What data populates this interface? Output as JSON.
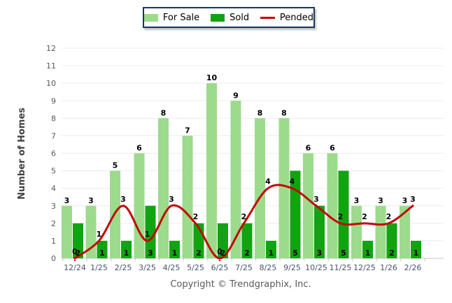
{
  "legend": {
    "for_sale_label": "For Sale",
    "sold_label": "Sold",
    "pended_label": "Pended"
  },
  "footer": "Copyright © Trendgraphix, Inc.",
  "chart_data": {
    "type": "bar",
    "subtype": "grouped-bars-with-line-overlay",
    "title": "",
    "xlabel": "",
    "ylabel": "Number of Homes",
    "ylim": [
      0,
      12
    ],
    "yticks": [
      0,
      1,
      2,
      3,
      4,
      5,
      6,
      7,
      8,
      9,
      10,
      11,
      12
    ],
    "grid": true,
    "legend_position": "top-center",
    "categories": [
      "12/24",
      "1/25",
      "2/25",
      "3/25",
      "4/25",
      "5/25",
      "6/25",
      "7/25",
      "8/25",
      "9/25",
      "10/25",
      "11/25",
      "12/25",
      "1/26",
      "2/26"
    ],
    "series": [
      {
        "name": "For Sale",
        "type": "bar",
        "color": "#9CDB8C",
        "values": [
          3,
          3,
          5,
          6,
          8,
          7,
          10,
          9,
          8,
          8,
          6,
          6,
          3,
          3,
          3
        ]
      },
      {
        "name": "Sold",
        "type": "bar",
        "color": "#11A411",
        "values": [
          2,
          1,
          1,
          3,
          1,
          2,
          2,
          2,
          1,
          5,
          3,
          5,
          1,
          2,
          1
        ]
      },
      {
        "name": "Pended",
        "type": "line",
        "color": "#C40505",
        "values": [
          0,
          1,
          3,
          1,
          3,
          2,
          0,
          2,
          4,
          4,
          3,
          2,
          2,
          2,
          3
        ]
      }
    ],
    "colors": {
      "gridline": "#ECECEC",
      "baseline": "#C6C6C6",
      "value_label": "#000000",
      "legend_border": "#17375D"
    }
  }
}
